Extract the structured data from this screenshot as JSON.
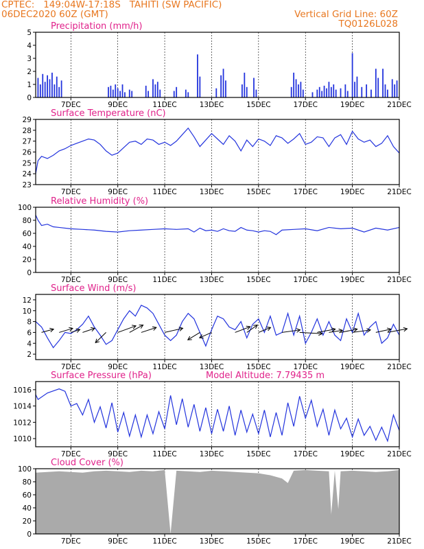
{
  "header": {
    "line1": "CPTEC:   149:04W-17:18S   TAHITI (SW PACIFIC)",
    "line2": "06DEC2020 60Z (GMT)",
    "right1": "Vertical Grid Line: 60Z",
    "right2": "TQ0126L028"
  },
  "colors": {
    "header": "#e8771f",
    "title": "#e0218a",
    "series": "#2233dd",
    "cloud": "#aaaaaa",
    "arrow": "#000000"
  },
  "chart_data": [
    {
      "type": "bar",
      "title": "Precipitation (mm/h)",
      "x_range": [
        5.5,
        21.0
      ],
      "x_ticks": [
        "7DEC",
        "9DEC",
        "11DEC",
        "13DEC",
        "15DEC",
        "17DEC",
        "19DEC",
        "21DEC"
      ],
      "ylim": [
        0,
        5
      ],
      "y_ticks": [
        "0",
        "1",
        "2",
        "3",
        "4",
        "5"
      ],
      "events": [
        {
          "x": 5.6,
          "value": 1.5
        },
        {
          "x": 5.7,
          "value": 1.0
        },
        {
          "x": 5.8,
          "value": 1.8
        },
        {
          "x": 5.9,
          "value": 1.2
        },
        {
          "x": 6.0,
          "value": 1.7
        },
        {
          "x": 6.1,
          "value": 1.4
        },
        {
          "x": 6.2,
          "value": 1.9
        },
        {
          "x": 6.3,
          "value": 1.0
        },
        {
          "x": 6.4,
          "value": 1.6
        },
        {
          "x": 6.5,
          "value": 0.8
        },
        {
          "x": 6.6,
          "value": 1.3
        },
        {
          "x": 8.6,
          "value": 0.8
        },
        {
          "x": 8.7,
          "value": 0.9
        },
        {
          "x": 8.8,
          "value": 0.6
        },
        {
          "x": 8.9,
          "value": 1.0
        },
        {
          "x": 9.0,
          "value": 0.7
        },
        {
          "x": 9.1,
          "value": 0.5
        },
        {
          "x": 9.2,
          "value": 1.0
        },
        {
          "x": 9.3,
          "value": 0.4
        },
        {
          "x": 9.5,
          "value": 0.6
        },
        {
          "x": 9.6,
          "value": 0.5
        },
        {
          "x": 10.2,
          "value": 0.9
        },
        {
          "x": 10.3,
          "value": 0.5
        },
        {
          "x": 10.5,
          "value": 1.4
        },
        {
          "x": 10.6,
          "value": 1.0
        },
        {
          "x": 10.7,
          "value": 1.2
        },
        {
          "x": 10.8,
          "value": 0.6
        },
        {
          "x": 11.4,
          "value": 0.5
        },
        {
          "x": 11.5,
          "value": 0.8
        },
        {
          "x": 11.9,
          "value": 0.6
        },
        {
          "x": 12.0,
          "value": 0.4
        },
        {
          "x": 12.4,
          "value": 3.3
        },
        {
          "x": 12.5,
          "value": 1.6
        },
        {
          "x": 13.2,
          "value": 0.7
        },
        {
          "x": 13.4,
          "value": 1.7
        },
        {
          "x": 13.5,
          "value": 2.2
        },
        {
          "x": 13.6,
          "value": 1.3
        },
        {
          "x": 14.3,
          "value": 1.0
        },
        {
          "x": 14.4,
          "value": 1.9
        },
        {
          "x": 14.5,
          "value": 0.8
        },
        {
          "x": 14.8,
          "value": 1.5
        },
        {
          "x": 14.9,
          "value": 0.6
        },
        {
          "x": 16.4,
          "value": 0.8
        },
        {
          "x": 16.5,
          "value": 1.9
        },
        {
          "x": 16.6,
          "value": 1.4
        },
        {
          "x": 16.7,
          "value": 1.0
        },
        {
          "x": 16.8,
          "value": 1.2
        },
        {
          "x": 16.9,
          "value": 0.6
        },
        {
          "x": 17.3,
          "value": 0.4
        },
        {
          "x": 17.5,
          "value": 0.6
        },
        {
          "x": 17.6,
          "value": 0.8
        },
        {
          "x": 17.7,
          "value": 0.5
        },
        {
          "x": 17.8,
          "value": 0.9
        },
        {
          "x": 17.9,
          "value": 0.7
        },
        {
          "x": 18.0,
          "value": 1.2
        },
        {
          "x": 18.1,
          "value": 0.8
        },
        {
          "x": 18.2,
          "value": 1.0
        },
        {
          "x": 18.3,
          "value": 0.6
        },
        {
          "x": 18.5,
          "value": 0.7
        },
        {
          "x": 18.7,
          "value": 1.0
        },
        {
          "x": 18.8,
          "value": 0.5
        },
        {
          "x": 19.0,
          "value": 3.4
        },
        {
          "x": 19.1,
          "value": 1.2
        },
        {
          "x": 19.2,
          "value": 1.6
        },
        {
          "x": 19.4,
          "value": 0.8
        },
        {
          "x": 19.6,
          "value": 1.0
        },
        {
          "x": 19.8,
          "value": 0.6
        },
        {
          "x": 20.0,
          "value": 2.2
        },
        {
          "x": 20.1,
          "value": 1.5
        },
        {
          "x": 20.3,
          "value": 2.2
        },
        {
          "x": 20.4,
          "value": 1.0
        },
        {
          "x": 20.5,
          "value": 0.6
        },
        {
          "x": 20.7,
          "value": 1.4
        },
        {
          "x": 20.8,
          "value": 1.0
        },
        {
          "x": 20.9,
          "value": 1.3
        }
      ]
    },
    {
      "type": "line",
      "title": "Surface Temperature (nC)",
      "x_range": [
        5.5,
        21.0
      ],
      "x_ticks": [
        "7DEC",
        "9DEC",
        "11DEC",
        "13DEC",
        "15DEC",
        "17DEC",
        "19DEC",
        "21DEC"
      ],
      "ylim": [
        23,
        29
      ],
      "y_ticks": [
        "23",
        "24",
        "25",
        "26",
        "27",
        "28",
        "29"
      ],
      "x": [
        5.5,
        5.6,
        5.75,
        6.0,
        6.25,
        6.5,
        6.75,
        7.0,
        7.25,
        7.5,
        7.75,
        8.0,
        8.25,
        8.5,
        8.75,
        9.0,
        9.25,
        9.5,
        9.75,
        10.0,
        10.25,
        10.5,
        10.75,
        11.0,
        11.25,
        11.5,
        11.75,
        12.0,
        12.25,
        12.5,
        12.75,
        13.0,
        13.25,
        13.5,
        13.75,
        14.0,
        14.25,
        14.5,
        14.75,
        15.0,
        15.25,
        15.5,
        15.75,
        16.0,
        16.25,
        16.5,
        16.75,
        17.0,
        17.25,
        17.5,
        17.75,
        18.0,
        18.25,
        18.5,
        18.75,
        19.0,
        19.25,
        19.5,
        19.75,
        20.0,
        20.25,
        20.5,
        20.75,
        21.0
      ],
      "values": [
        24.0,
        25.2,
        25.6,
        25.4,
        25.7,
        26.1,
        26.3,
        26.6,
        26.8,
        27.0,
        27.2,
        27.1,
        26.7,
        26.1,
        25.7,
        25.9,
        26.4,
        26.9,
        27.0,
        26.7,
        27.2,
        27.1,
        26.7,
        26.9,
        26.6,
        27.0,
        27.6,
        28.2,
        27.4,
        26.5,
        27.1,
        27.7,
        27.2,
        26.7,
        27.5,
        27.0,
        26.1,
        27.1,
        26.5,
        27.2,
        27.0,
        26.6,
        27.5,
        27.3,
        26.8,
        27.2,
        27.7,
        26.7,
        26.9,
        27.4,
        27.3,
        26.5,
        27.3,
        27.6,
        26.7,
        27.9,
        27.2,
        26.9,
        27.1,
        26.5,
        26.8,
        27.5,
        26.5,
        25.9
      ]
    },
    {
      "type": "line",
      "title": "Relative Humidity (%)",
      "x_range": [
        5.5,
        21.0
      ],
      "x_ticks": [
        "7DEC",
        "9DEC",
        "11DEC",
        "13DEC",
        "15DEC",
        "17DEC",
        "19DEC",
        "21DEC"
      ],
      "ylim": [
        0,
        100
      ],
      "y_ticks": [
        "0",
        "20",
        "40",
        "60",
        "80",
        "100"
      ],
      "x": [
        5.5,
        5.6,
        5.75,
        6.0,
        6.25,
        6.5,
        7.0,
        7.5,
        8.0,
        8.5,
        9.0,
        9.5,
        10.0,
        10.5,
        11.0,
        11.5,
        12.0,
        12.25,
        12.5,
        12.75,
        13.0,
        13.25,
        13.5,
        13.75,
        14.0,
        14.25,
        14.5,
        14.75,
        15.0,
        15.25,
        15.5,
        15.75,
        16.0,
        16.5,
        17.0,
        17.5,
        18.0,
        18.5,
        19.0,
        19.5,
        20.0,
        20.5,
        21.0
      ],
      "values": [
        88,
        80,
        72,
        74,
        70,
        69,
        67,
        66,
        65,
        63,
        62,
        64,
        65,
        66,
        67,
        66,
        67,
        62,
        68,
        64,
        65,
        63,
        67,
        64,
        63,
        69,
        65,
        64,
        62,
        64,
        63,
        58,
        65,
        66,
        67,
        64,
        69,
        67,
        68,
        62,
        68,
        65,
        69
      ]
    },
    {
      "type": "line",
      "title": "Surface Wind (m/s)",
      "x_range": [
        5.5,
        21.0
      ],
      "x_ticks": [
        "7DEC",
        "9DEC",
        "11DEC",
        "13DEC",
        "15DEC",
        "17DEC",
        "19DEC",
        "21DEC"
      ],
      "ylim": [
        1,
        13
      ],
      "y_ticks": [
        "2",
        "4",
        "6",
        "8",
        "10",
        "12"
      ],
      "x": [
        5.5,
        5.75,
        6.0,
        6.25,
        6.5,
        6.75,
        7.0,
        7.25,
        7.5,
        7.75,
        8.0,
        8.25,
        8.5,
        8.75,
        9.0,
        9.25,
        9.5,
        9.75,
        10.0,
        10.25,
        10.5,
        10.75,
        11.0,
        11.25,
        11.5,
        11.75,
        12.0,
        12.25,
        12.5,
        12.75,
        13.0,
        13.25,
        13.5,
        13.75,
        14.0,
        14.25,
        14.5,
        14.75,
        15.0,
        15.25,
        15.5,
        15.75,
        16.0,
        16.25,
        16.5,
        16.75,
        17.0,
        17.25,
        17.5,
        17.75,
        18.0,
        18.25,
        18.5,
        18.75,
        19.0,
        19.25,
        19.5,
        19.75,
        20.0,
        20.25,
        20.5,
        20.75,
        21.0
      ],
      "values": [
        8.0,
        7.0,
        5.0,
        3.2,
        4.5,
        6.0,
        5.8,
        6.5,
        7.5,
        9.0,
        7.0,
        5.5,
        3.8,
        4.5,
        6.5,
        8.5,
        10.0,
        9.0,
        11.0,
        10.5,
        9.5,
        7.5,
        5.5,
        4.5,
        5.5,
        8.0,
        9.5,
        8.5,
        6.0,
        3.5,
        6.5,
        9.0,
        8.5,
        7.0,
        6.5,
        8.0,
        5.0,
        7.5,
        8.5,
        6.0,
        9.0,
        5.5,
        6.0,
        9.5,
        5.5,
        9.0,
        4.0,
        6.0,
        8.5,
        5.5,
        8.0,
        5.5,
        4.5,
        8.5,
        6.0,
        9.5,
        5.5,
        7.0,
        8.0,
        4.0,
        5.0,
        7.5,
        5.5
      ],
      "arrows": [
        {
          "x": 5.75,
          "dx": 0.8,
          "dy": -0.8
        },
        {
          "x": 6.5,
          "dx": 0.9,
          "dy": -1.0
        },
        {
          "x": 7.0,
          "dx": 0.6,
          "dy": -0.7
        },
        {
          "x": 7.5,
          "dx": 0.8,
          "dy": -1.0
        },
        {
          "x": 8.5,
          "dx": -0.7,
          "dy": 2.5
        },
        {
          "x": 9.0,
          "dx": 1.2,
          "dy": -1.6
        },
        {
          "x": 9.5,
          "dx": 0.9,
          "dy": -1.8
        },
        {
          "x": 10.0,
          "dx": 1.0,
          "dy": -1.2
        },
        {
          "x": 11.0,
          "dx": 1.2,
          "dy": -1.0
        },
        {
          "x": 12.5,
          "dx": -0.8,
          "dy": 1.8
        },
        {
          "x": 13.0,
          "dx": -0.8,
          "dy": 1.3
        },
        {
          "x": 14.0,
          "dx": 1.0,
          "dy": -1.4
        },
        {
          "x": 14.5,
          "dx": 0.7,
          "dy": -1.8
        },
        {
          "x": 15.0,
          "dx": 0.8,
          "dy": -1.2
        },
        {
          "x": 16.0,
          "dx": 1.2,
          "dy": -0.6
        },
        {
          "x": 16.75,
          "dx": 1.5,
          "dy": 0.3
        },
        {
          "x": 17.5,
          "dx": 1.2,
          "dy": -0.8
        },
        {
          "x": 18.0,
          "dx": 0.9,
          "dy": -0.5
        },
        {
          "x": 18.5,
          "dx": 1.1,
          "dy": -0.8
        },
        {
          "x": 19.0,
          "dx": 1.2,
          "dy": -0.6
        },
        {
          "x": 20.0,
          "dx": 1.0,
          "dy": -0.8
        },
        {
          "x": 20.5,
          "dx": 1.3,
          "dy": -0.9
        }
      ]
    },
    {
      "type": "line",
      "title": "Surface Pressure (hPa)",
      "subtitle": "Model Altitude: 7.79435 m",
      "x_range": [
        5.5,
        21.0
      ],
      "x_ticks": [
        "7DEC",
        "9DEC",
        "11DEC",
        "13DEC",
        "15DEC",
        "17DEC",
        "19DEC",
        "21DEC"
      ],
      "ylim": [
        1009,
        1017
      ],
      "y_ticks": [
        "1010",
        "1012",
        "1014",
        "1016"
      ],
      "x": [
        5.5,
        5.6,
        6.0,
        6.5,
        6.75,
        7.0,
        7.25,
        7.5,
        7.75,
        8.0,
        8.25,
        8.5,
        8.75,
        9.0,
        9.25,
        9.5,
        9.75,
        10.0,
        10.25,
        10.5,
        10.75,
        11.0,
        11.25,
        11.5,
        11.75,
        12.0,
        12.25,
        12.5,
        12.75,
        13.0,
        13.25,
        13.5,
        13.75,
        14.0,
        14.25,
        14.5,
        14.75,
        15.0,
        15.25,
        15.5,
        15.75,
        16.0,
        16.25,
        16.5,
        16.75,
        17.0,
        17.25,
        17.5,
        17.75,
        18.0,
        18.25,
        18.5,
        18.75,
        19.0,
        19.25,
        19.5,
        19.75,
        20.0,
        20.25,
        20.5,
        20.75,
        21.0
      ],
      "values": [
        1015.4,
        1014.8,
        1015.6,
        1016.1,
        1015.8,
        1014.0,
        1014.3,
        1012.9,
        1014.8,
        1012.0,
        1013.9,
        1011.3,
        1014.4,
        1010.8,
        1013.2,
        1010.3,
        1012.9,
        1010.2,
        1012.9,
        1010.6,
        1013.3,
        1011.2,
        1015.3,
        1011.7,
        1014.9,
        1011.4,
        1014.2,
        1010.9,
        1013.8,
        1010.6,
        1013.6,
        1010.9,
        1014.0,
        1010.4,
        1013.5,
        1010.8,
        1013.0,
        1010.6,
        1013.5,
        1010.2,
        1013.2,
        1010.4,
        1014.4,
        1011.5,
        1015.2,
        1012.5,
        1014.7,
        1011.5,
        1013.6,
        1010.4,
        1013.5,
        1011.2,
        1012.5,
        1010.2,
        1012.4,
        1010.4,
        1011.5,
        1009.8,
        1011.4,
        1009.7,
        1012.9,
        1011.0
      ]
    },
    {
      "type": "bar",
      "title": "Cloud Cover (%)",
      "x_range": [
        5.5,
        21.0
      ],
      "x_ticks": [
        "7DEC",
        "9DEC",
        "11DEC",
        "13DEC",
        "15DEC",
        "17DEC",
        "19DEC",
        "21DEC"
      ],
      "ylim": [
        0,
        100
      ],
      "y_ticks": [
        "0",
        "20",
        "40",
        "60",
        "80",
        "100"
      ],
      "x": [
        5.5,
        6.0,
        6.5,
        7.0,
        7.5,
        8.0,
        8.5,
        9.0,
        9.5,
        10.0,
        10.5,
        11.0,
        11.25,
        11.5,
        12.0,
        12.5,
        13.0,
        13.5,
        14.0,
        14.5,
        15.0,
        15.5,
        16.0,
        16.25,
        16.5,
        17.0,
        17.5,
        18.0,
        18.1,
        18.25,
        18.4,
        18.5,
        19.0,
        19.5,
        20.0,
        20.5,
        21.0
      ],
      "values": [
        94,
        95,
        96,
        95,
        94,
        96,
        97,
        96,
        95,
        97,
        96,
        98,
        0,
        97,
        96,
        95,
        97,
        96,
        95,
        94,
        93,
        90,
        85,
        78,
        97,
        98,
        97,
        96,
        30,
        97,
        38,
        96,
        97,
        96,
        95,
        96,
        98
      ]
    }
  ]
}
